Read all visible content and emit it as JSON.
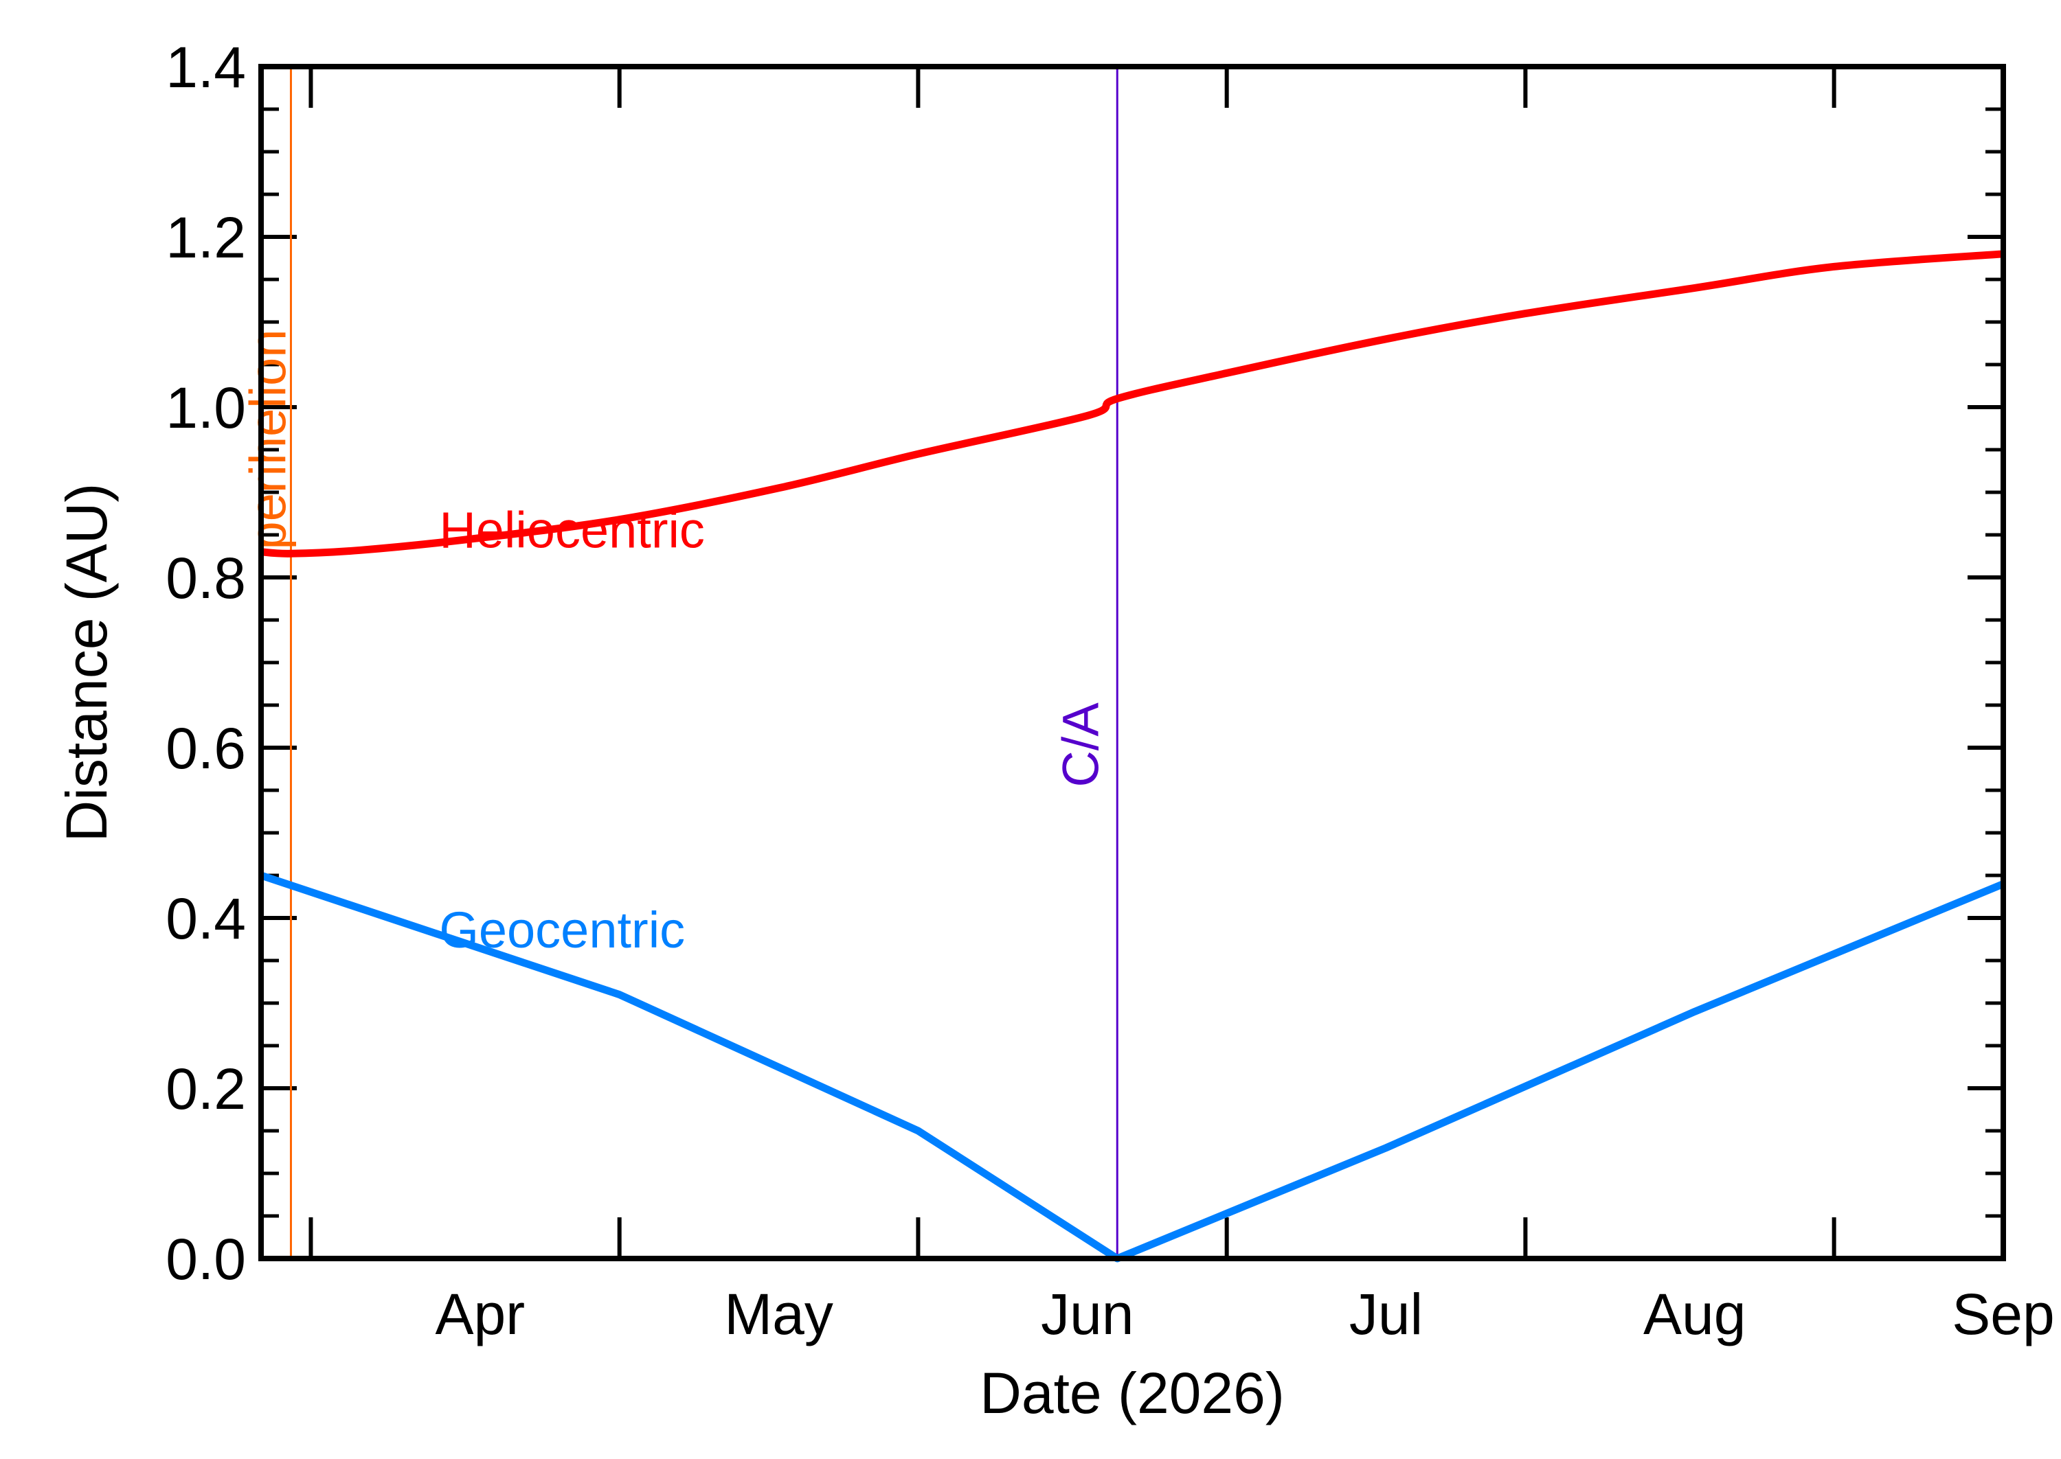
{
  "chart_data": {
    "type": "line",
    "xlabel": "Date (2026)",
    "ylabel": "Distance (AU)",
    "xlim": [
      "2026-03-10",
      "2026-09-01"
    ],
    "ylim": [
      0.0,
      1.4
    ],
    "x_ticks": [
      {
        "date": "2026-04-01",
        "label": "Apr"
      },
      {
        "date": "2026-05-01",
        "label": "May"
      },
      {
        "date": "2026-06-01",
        "label": "Jun"
      },
      {
        "date": "2026-07-01",
        "label": "Jul"
      },
      {
        "date": "2026-08-01",
        "label": "Aug"
      },
      {
        "date": "2026-09-01",
        "label": "Sep"
      }
    ],
    "y_ticks": [
      {
        "value": 0.0,
        "label": "0.0"
      },
      {
        "value": 0.2,
        "label": "0.2"
      },
      {
        "value": 0.4,
        "label": "0.4"
      },
      {
        "value": 0.6,
        "label": "0.6"
      },
      {
        "value": 0.8,
        "label": "0.8"
      },
      {
        "value": 1.0,
        "label": "1.0"
      },
      {
        "value": 1.2,
        "label": "1.2"
      },
      {
        "value": 1.4,
        "label": "1.4"
      }
    ],
    "series": [
      {
        "name": "Heliocentric",
        "color": "#ff0000",
        "points": [
          [
            "2026-03-10",
            0.83
          ],
          [
            "2026-03-13",
            0.828
          ],
          [
            "2026-03-20",
            0.832
          ],
          [
            "2026-03-31",
            0.845
          ],
          [
            "2026-04-15",
            0.868
          ],
          [
            "2026-05-01",
            0.905
          ],
          [
            "2026-05-15",
            0.945
          ],
          [
            "2026-06-01",
            0.99
          ],
          [
            "2026-06-04",
            1.01
          ],
          [
            "2026-06-15",
            1.04
          ],
          [
            "2026-07-01",
            1.08
          ],
          [
            "2026-07-15",
            1.11
          ],
          [
            "2026-08-01",
            1.14
          ],
          [
            "2026-08-15",
            1.165
          ],
          [
            "2026-09-01",
            1.18
          ]
        ]
      },
      {
        "name": "Geocentric",
        "color": "#0080ff",
        "points": [
          [
            "2026-03-10",
            0.45
          ],
          [
            "2026-04-15",
            0.31
          ],
          [
            "2026-05-15",
            0.15
          ],
          [
            "2026-06-04",
            0.0
          ],
          [
            "2026-07-01",
            0.13
          ],
          [
            "2026-08-01",
            0.29
          ],
          [
            "2026-09-01",
            0.44
          ]
        ]
      }
    ],
    "vlines": [
      {
        "label": "perihelion",
        "date": "2026-03-13",
        "color": "#ff6600"
      },
      {
        "label": "C/A",
        "date": "2026-06-04",
        "color": "#5500cc"
      }
    ],
    "series_labels": [
      {
        "text": "Heliocentric",
        "date": "2026-03-31",
        "value": 0.84,
        "color": "#ff0000"
      },
      {
        "text": "Geocentric",
        "date": "2026-03-31",
        "value": 0.37,
        "color": "#0080ff"
      }
    ]
  }
}
